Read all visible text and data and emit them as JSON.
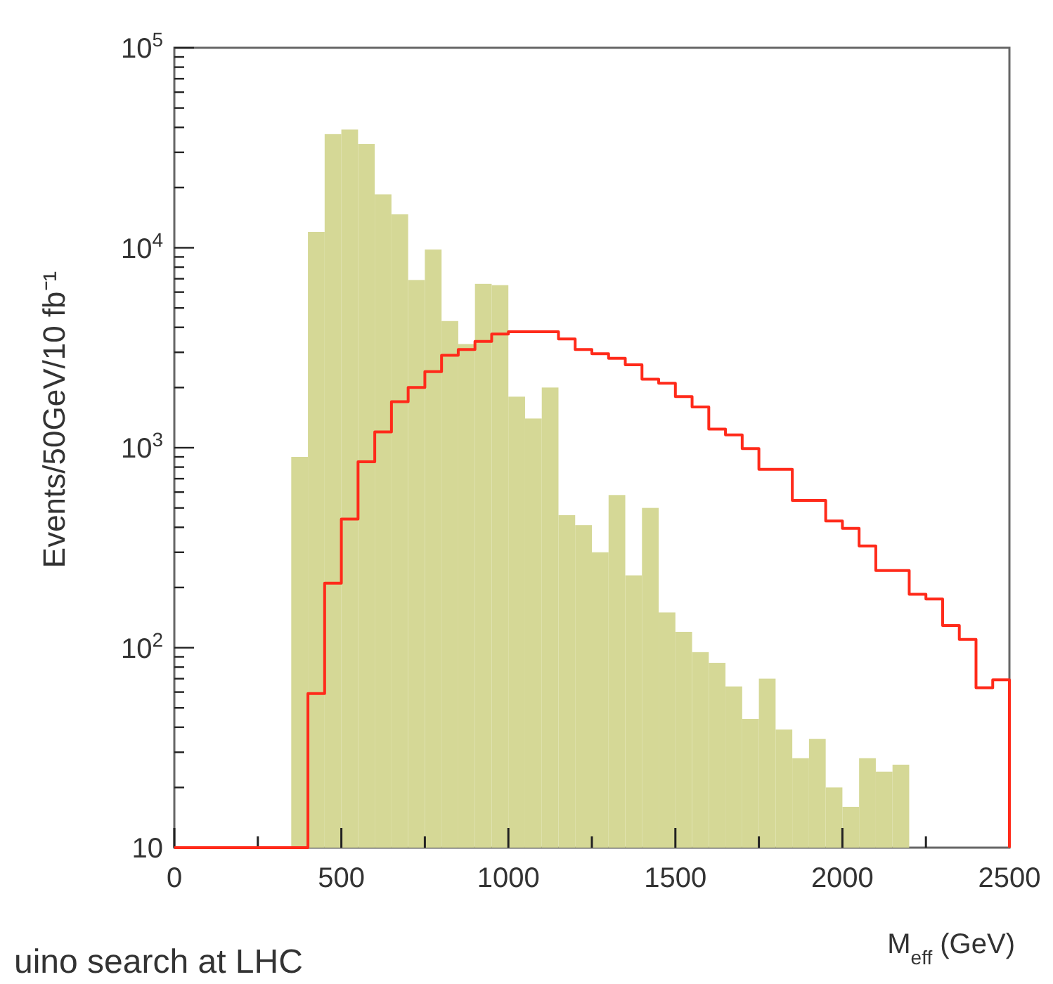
{
  "chart_data": {
    "type": "histogram",
    "xlabel": "M$_{eff}$ (GeV)",
    "ylabel": "Events/50GeV/10 fb⁻¹",
    "annotations": [
      "uino search at LHC"
    ],
    "log": "y",
    "grid": false,
    "xlim": [
      0,
      2500
    ],
    "ylim": [
      10,
      100000
    ],
    "xticks": [
      0,
      {
        "value": 250,
        "label": null
      },
      500,
      {
        "value": 750,
        "label": null
      },
      1000,
      {
        "value": 1250,
        "label": null
      },
      1500,
      {
        "value": 1750,
        "label": null
      },
      2000,
      {
        "value": 2250,
        "label": null
      },
      2500
    ],
    "yticks": [
      10,
      {
        "value": 20,
        "label": null
      },
      {
        "value": 30,
        "label": null
      },
      {
        "value": 40,
        "label": null
      },
      {
        "value": 50,
        "label": null
      },
      {
        "value": 60,
        "label": null
      },
      {
        "value": 70,
        "label": null
      },
      {
        "value": 80,
        "label": null
      },
      {
        "value": 90,
        "label": null
      },
      {
        "value": 100,
        "label": "10$^{2}$"
      },
      {
        "value": 200,
        "label": null
      },
      {
        "value": 300,
        "label": null
      },
      {
        "value": 400,
        "label": null
      },
      {
        "value": 500,
        "label": null
      },
      {
        "value": 600,
        "label": null
      },
      {
        "value": 700,
        "label": null
      },
      {
        "value": 800,
        "label": null
      },
      {
        "value": 900,
        "label": null
      },
      {
        "value": 1000,
        "label": "10$^{3}$"
      },
      {
        "value": 2000,
        "label": null
      },
      {
        "value": 3000,
        "label": null
      },
      {
        "value": 4000,
        "label": null
      },
      {
        "value": 5000,
        "label": null
      },
      {
        "value": 6000,
        "label": null
      },
      {
        "value": 7000,
        "label": null
      },
      {
        "value": 8000,
        "label": null
      },
      {
        "value": 9000,
        "label": null
      },
      {
        "value": 10000,
        "label": "10$^{4}$"
      },
      {
        "value": 20000,
        "label": null
      },
      {
        "value": 30000,
        "label": null
      },
      {
        "value": 40000,
        "label": null
      },
      {
        "value": 50000,
        "label": null
      },
      {
        "value": 60000,
        "label": null
      },
      {
        "value": 70000,
        "label": null
      },
      {
        "value": 80000,
        "label": null
      },
      {
        "value": 90000,
        "label": null
      },
      {
        "value": 100000,
        "label": "10$^{5}$"
      }
    ],
    "series": [
      {
        "color": "#d5d896",
        "bins": [
          350,
          400,
          450,
          500,
          550,
          600,
          650,
          700,
          750,
          800,
          850,
          900,
          950,
          1000,
          1050,
          1100,
          1150,
          1200,
          1250,
          1300,
          1350,
          1400,
          1450,
          1500,
          1550,
          1600,
          1650,
          1700,
          1750,
          1800,
          1850,
          1900,
          1950,
          2000,
          2050,
          2100,
          2150,
          2200
        ],
        "values": [
          900,
          12000,
          37000,
          39000,
          33000,
          18500,
          14700,
          6900,
          9800,
          4300,
          3300,
          6600,
          6500,
          1800,
          1400,
          2000,
          460,
          410,
          300,
          580,
          230,
          500,
          150,
          120,
          95,
          84,
          64,
          44,
          70,
          39,
          28,
          35,
          20,
          16,
          28,
          24,
          26
        ]
      },
      {
        "type": "step",
        "color": "#ff2a1a",
        "x": [
          0,
          50,
          100,
          150,
          200,
          250,
          300,
          350,
          400,
          450,
          500,
          550,
          600,
          650,
          700,
          750,
          800,
          850,
          900,
          950,
          1000,
          1050,
          1100,
          1150,
          1200,
          1250,
          1300,
          1350,
          1400,
          1450,
          1500,
          1550,
          1600,
          1650,
          1700,
          1750,
          1800,
          1850,
          1900,
          1950,
          2000,
          2050,
          2100,
          2150,
          2200,
          2250,
          2300,
          2350,
          2400,
          2450,
          2500
        ],
        "values": [
          10,
          10,
          10,
          10,
          10,
          10,
          10,
          10,
          59,
          210,
          440,
          850,
          1200,
          1700,
          2000,
          2400,
          2900,
          3100,
          3400,
          3700,
          3800,
          3800,
          3800,
          3500,
          3100,
          2950,
          2800,
          2600,
          2200,
          2100,
          1800,
          1600,
          1240,
          1160,
          990,
          780,
          780,
          545,
          545,
          430,
          395,
          323,
          243,
          243,
          185,
          175,
          129,
          110,
          63,
          69,
          10
        ]
      }
    ]
  }
}
